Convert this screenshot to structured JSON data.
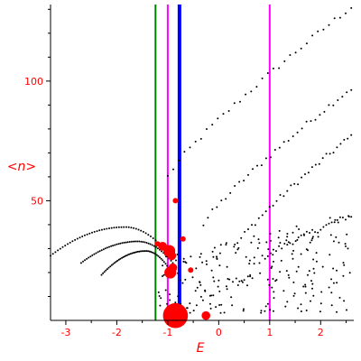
{
  "chart_data": {
    "type": "scatter",
    "title": "",
    "xlabel": "E",
    "ylabel": "<n>",
    "xlim": [
      -3.3,
      2.65
    ],
    "ylim": [
      0,
      132
    ],
    "grid": false,
    "x_ticks": [
      {
        "value": -3,
        "label": "-3"
      },
      {
        "value": -2,
        "label": "-2"
      },
      {
        "value": -1,
        "label": "-1"
      },
      {
        "value": 0,
        "label": "0"
      },
      {
        "value": 1,
        "label": "1"
      },
      {
        "value": 2,
        "label": "2"
      }
    ],
    "y_ticks": [
      {
        "value": 50,
        "label": "50"
      },
      {
        "value": 100,
        "label": "100"
      }
    ],
    "vertical_lines": [
      {
        "x": -1.24,
        "color": "#008000",
        "style": "thin"
      },
      {
        "x": -1.0,
        "color": "#ff00ff",
        "style": "thin"
      },
      {
        "x": -0.77,
        "color": "#0000ff",
        "style": "thick"
      },
      {
        "x": 1.0,
        "color": "#ff00ff",
        "style": "thin"
      }
    ],
    "series": [
      {
        "color": "#000000",
        "kind": "band",
        "band": 1,
        "x_range": [
          -1.0,
          2.6
        ],
        "y_range": [
          60,
          131
        ]
      },
      {
        "color": "#000000",
        "kind": "band",
        "band": 2,
        "x_range": [
          -0.3,
          2.6
        ],
        "y_range": [
          40,
          97
        ]
      },
      {
        "color": "#000000",
        "kind": "band",
        "band": 3,
        "x_range": [
          0.3,
          2.6
        ],
        "y_range": [
          30,
          77
        ]
      },
      {
        "color": "#000000",
        "kind": "band",
        "band": 4,
        "x_range": [
          0.8,
          2.6
        ],
        "y_range": [
          25,
          44
        ]
      },
      {
        "color": "#000000",
        "kind": "arc",
        "arc": 1,
        "x_range": [
          -3.3,
          -0.95
        ],
        "y_range": [
          27,
          39
        ]
      },
      {
        "color": "#000000",
        "kind": "arc",
        "arc": 2,
        "x_range": [
          -2.7,
          -0.9
        ],
        "y_range": [
          24,
          33
        ]
      },
      {
        "color": "#000000",
        "kind": "arc",
        "arc": 3,
        "x_range": [
          -2.3,
          -0.9
        ],
        "y_range": [
          19,
          29
        ]
      },
      {
        "color": "#000000",
        "kind": "cloud",
        "x_range": [
          -1.2,
          2.6
        ],
        "y_range": [
          3,
          45
        ]
      },
      {
        "color": "#ff0000",
        "kind": "circles",
        "points": [
          {
            "x": -0.85,
            "y": 50,
            "size": 1
          },
          {
            "x": -1.2,
            "y": 32,
            "size": 1
          },
          {
            "x": -1.1,
            "y": 31,
            "size": 2
          },
          {
            "x": -0.97,
            "y": 29,
            "size": 3
          },
          {
            "x": -0.92,
            "y": 27,
            "size": 2
          },
          {
            "x": -0.7,
            "y": 34,
            "size": 1
          },
          {
            "x": -0.95,
            "y": 20,
            "size": 3
          },
          {
            "x": -0.9,
            "y": 22,
            "size": 2
          },
          {
            "x": -0.55,
            "y": 21,
            "size": 1
          },
          {
            "x": -0.85,
            "y": 2,
            "size": 7
          },
          {
            "x": -0.25,
            "y": 2,
            "size": 2
          }
        ]
      }
    ]
  }
}
